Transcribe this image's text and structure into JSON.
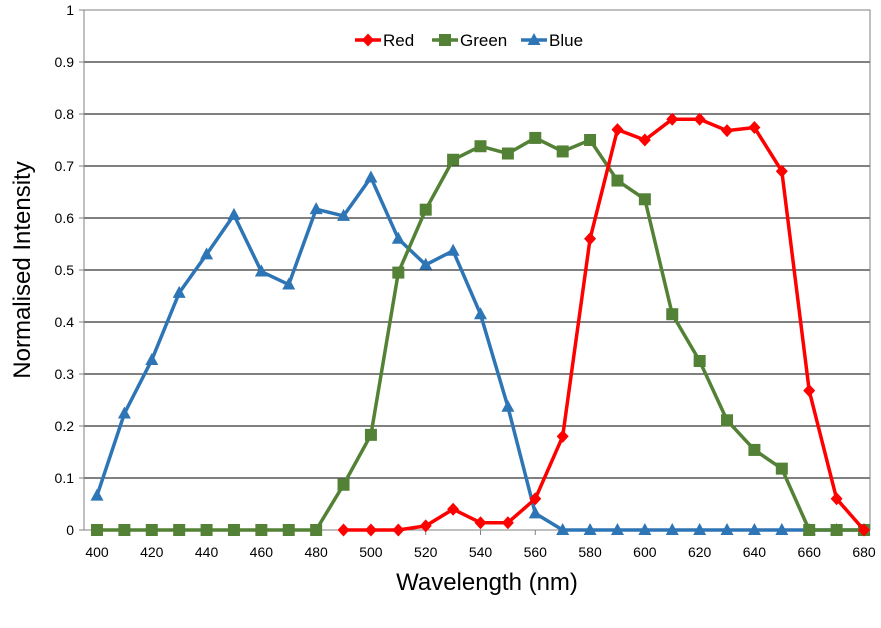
{
  "chart_data": {
    "type": "line",
    "xlabel": "Wavelength (nm)",
    "ylabel": "Normalised Intensity",
    "xlim": [
      400,
      680
    ],
    "ylim": [
      0,
      1
    ],
    "x_ticks": [
      "400",
      "420",
      "440",
      "460",
      "480",
      "500",
      "520",
      "540",
      "560",
      "580",
      "600",
      "620",
      "640",
      "660",
      "680"
    ],
    "y_ticks": [
      "0",
      "0.1",
      "0.2",
      "0.3",
      "0.4",
      "0.5",
      "0.6",
      "0.7",
      "0.8",
      "0.9",
      "1"
    ],
    "grid": "horizontal",
    "legend_position": "top-center",
    "x": [
      400,
      410,
      420,
      430,
      440,
      450,
      460,
      470,
      480,
      490,
      500,
      510,
      520,
      530,
      540,
      550,
      560,
      570,
      580,
      590,
      600,
      610,
      620,
      630,
      640,
      650,
      660,
      670,
      680
    ],
    "series": [
      {
        "name": "Red",
        "color": "#ff0000",
        "marker": "diamond",
        "x": [
          490,
          500,
          510,
          520,
          530,
          540,
          550,
          560,
          570,
          580,
          590,
          600,
          610,
          620,
          630,
          640,
          650,
          660,
          670,
          680
        ],
        "values": [
          0,
          0,
          0,
          0.008,
          0.04,
          0.014,
          0.014,
          0.06,
          0.18,
          0.56,
          0.77,
          0.75,
          0.79,
          0.79,
          0.768,
          0.774,
          0.69,
          0.268,
          0.06,
          0
        ]
      },
      {
        "name": "Green",
        "color": "#538135",
        "marker": "square",
        "x": [
          400,
          410,
          420,
          430,
          440,
          450,
          460,
          470,
          480,
          490,
          500,
          510,
          520,
          530,
          540,
          550,
          560,
          570,
          580,
          590,
          600,
          610,
          620,
          630,
          640,
          650,
          660,
          670,
          680
        ],
        "values": [
          0,
          0,
          0,
          0,
          0,
          0,
          0,
          0,
          0,
          0.087,
          0.183,
          0.495,
          0.616,
          0.712,
          0.738,
          0.724,
          0.754,
          0.728,
          0.75,
          0.672,
          0.636,
          0.415,
          0.325,
          0.211,
          0.154,
          0.118,
          0,
          0,
          0
        ]
      },
      {
        "name": "Blue",
        "color": "#2e75b6",
        "marker": "triangle",
        "x": [
          400,
          410,
          420,
          430,
          440,
          450,
          460,
          470,
          480,
          490,
          500,
          510,
          520,
          530,
          540,
          550,
          560,
          570,
          580,
          590,
          600,
          610,
          620,
          630,
          640,
          650,
          660,
          670,
          680
        ],
        "values": [
          0.066,
          0.224,
          0.327,
          0.456,
          0.53,
          0.606,
          0.497,
          0.472,
          0.617,
          0.604,
          0.678,
          0.56,
          0.51,
          0.537,
          0.415,
          0.237,
          0.032,
          0,
          0,
          0,
          0,
          0,
          0,
          0,
          0,
          0,
          0,
          0,
          0
        ]
      }
    ]
  }
}
